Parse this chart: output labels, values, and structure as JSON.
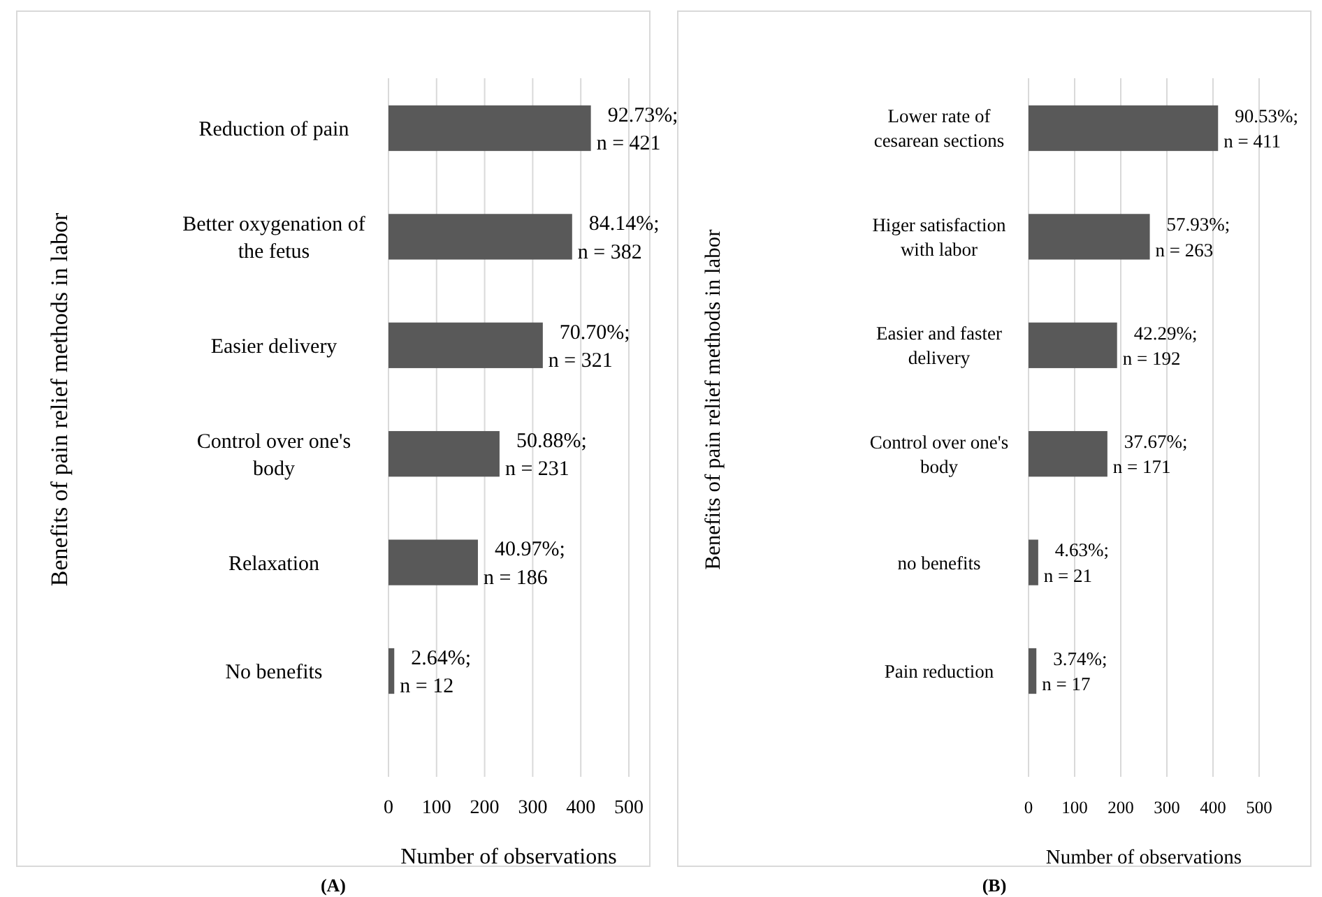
{
  "chart_data": [
    {
      "type": "bar",
      "orientation": "horizontal",
      "categories": [
        "Reduction of pain",
        "Better oxygenation of the fetus",
        "Easier delivery",
        "Control over one's body",
        "Relaxation",
        "No benefits"
      ],
      "values": [
        421,
        382,
        321,
        231,
        186,
        12
      ],
      "value_labels": [
        "92.73%; n = 421",
        "84.14%; n = 382",
        "70.70%; n = 321",
        "50.88%; n = 231",
        "40.97%; n = 186",
        "2.64%; n = 12"
      ],
      "color": "#595959",
      "xlim": [
        0,
        500
      ],
      "xticks": [
        0,
        100,
        200,
        300,
        400,
        500
      ],
      "grid": "x",
      "xlabel": "Number of observations",
      "ylabel": "Benefits of pain relief methods in labor",
      "annotations": [
        "(A)"
      ]
    },
    {
      "type": "bar",
      "orientation": "horizontal",
      "categories": [
        "Lower rate of cesarean sections",
        "Higer satisfaction with labor",
        "Easier and faster delivery",
        "Control over one's body",
        "no benefits",
        "Pain reduction"
      ],
      "values": [
        411,
        263,
        192,
        171,
        21,
        17
      ],
      "value_labels": [
        "90.53%; n = 411",
        "57.93%; n = 263",
        "42.29%; n = 192",
        "37.67%; n = 171",
        "4.63%; n = 21",
        "3.74%; n = 17"
      ],
      "color": "#595959",
      "xlim": [
        0,
        500
      ],
      "xticks": [
        0,
        100,
        200,
        300,
        400,
        500
      ],
      "grid": "x",
      "xlabel": "Number of observations",
      "ylabel": "Benefits of pain relief methods in labor",
      "annotations": [
        "(B)"
      ]
    }
  ]
}
